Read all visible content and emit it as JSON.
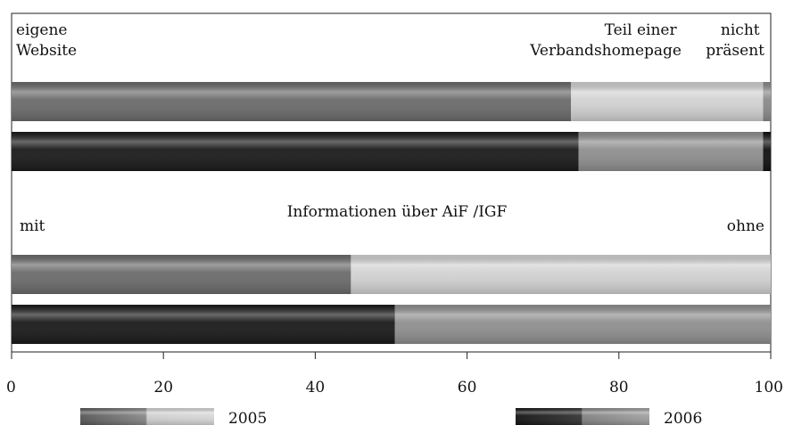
{
  "chart_data": {
    "type": "bar",
    "orientation": "horizontal",
    "stacked": true,
    "xlim": [
      0,
      100
    ],
    "x_ticks": [
      "0",
      "20",
      "40",
      "60",
      "80",
      "100"
    ],
    "legend": [
      {
        "name": "2005",
        "colors": [
          "#6b6b6b",
          "#d2d2d2"
        ]
      },
      {
        "name": "2006",
        "colors": [
          "#1a1a1a",
          "#8f8f8f"
        ]
      }
    ],
    "panels": [
      {
        "heading": "",
        "segment_labels": [
          "eigene\nWebsite",
          "Teil einer\nVerbandshomepage",
          "nicht\npräsent"
        ],
        "bars": [
          {
            "series": "2005",
            "values": [
              73.7,
              25.3,
              1.0
            ]
          },
          {
            "series": "2006",
            "values": [
              74.7,
              24.3,
              1.0
            ]
          }
        ]
      },
      {
        "heading": "Informationen über AiF /IGF",
        "segment_labels": [
          "mit",
          "ohne"
        ],
        "bars": [
          {
            "series": "2005",
            "values": [
              44.7,
              55.3
            ]
          },
          {
            "series": "2006",
            "values": [
              50.5,
              49.5
            ]
          }
        ]
      }
    ]
  },
  "colors": {
    "y2005": [
      "#6b6b6b",
      "#d2d2d2",
      "#8a8a8a"
    ],
    "y2006": [
      "#1a1a1a",
      "#8f8f8f",
      "#111111"
    ]
  }
}
